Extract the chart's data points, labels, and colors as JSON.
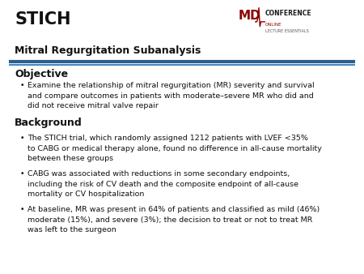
{
  "title_main": "STICH",
  "title_sub": "Mitral Regurgitation Subanalysis",
  "bg_color": "#ffffff",
  "divider_color_top": "#2b5f8e",
  "divider_color_bottom": "#4a86b8",
  "section1_header": "Objective",
  "section1_bullets": [
    "Examine the relationship of mitral regurgitation (MR) severity and survival\nand compare outcomes in patients with moderate–severe MR who did and\ndid not receive mitral valve repair"
  ],
  "section2_header": "Background",
  "section2_bullets": [
    "The STICH trial, which randomly assigned 1212 patients with LVEF <35%\nto CABG or medical therapy alone, found no difference in all-cause mortality\nbetween these groups",
    "CABG was associated with reductions in some secondary endpoints,\nincluding the risk of CV death and the composite endpoint of all-cause\nmortality or CV hospitalization",
    "At baseline, MR was present in 64% of patients and classified as mild (46%)\nmoderate (15%), and severe (3%); the decision to treat or not to treat MR\nwas left to the surgeon"
  ],
  "logo_md_color": "#8b0000",
  "logo_conference_color": "#1a1a1a",
  "logo_online_color": "#8b0000",
  "logo_lecture_color": "#555555",
  "title_main_fontsize": 15,
  "title_sub_fontsize": 9,
  "section_header_fontsize": 9,
  "body_fontsize": 6.8,
  "bullet_char": "•"
}
